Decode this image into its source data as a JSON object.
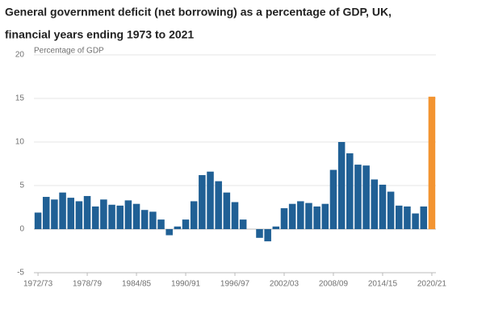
{
  "chart_data": {
    "type": "bar",
    "title": [
      "General government deficit (net borrowing) as a percentage of GDP, UK,",
      "financial years ending 1973 to 2021"
    ],
    "y_label": "Percentage of GDP",
    "categories": [
      "1972/73",
      null,
      null,
      null,
      null,
      null,
      "1978/79",
      null,
      null,
      null,
      null,
      null,
      "1984/85",
      null,
      null,
      null,
      null,
      null,
      "1990/91",
      null,
      null,
      null,
      null,
      null,
      "1996/97",
      null,
      null,
      null,
      null,
      null,
      "2002/03",
      null,
      null,
      null,
      null,
      null,
      "2008/09",
      null,
      null,
      null,
      null,
      null,
      "2014/15",
      null,
      null,
      null,
      null,
      null,
      "2020/21"
    ],
    "values": [
      1.9,
      3.7,
      3.4,
      4.2,
      3.6,
      3.2,
      3.8,
      2.6,
      3.4,
      2.8,
      2.7,
      3.3,
      2.9,
      2.2,
      2.0,
      1.1,
      -0.7,
      0.3,
      1.1,
      3.2,
      6.2,
      6.6,
      5.5,
      4.2,
      3.1,
      1.1,
      0,
      -1.0,
      -1.4,
      0.3,
      2.4,
      2.9,
      3.2,
      3.0,
      2.6,
      2.9,
      6.8,
      10.0,
      8.7,
      7.4,
      7.3,
      5.7,
      5.1,
      4.3,
      2.7,
      2.6,
      1.8,
      2.6,
      15.2
    ],
    "colors": [
      "#206095",
      "#206095",
      "#206095",
      "#206095",
      "#206095",
      "#206095",
      "#206095",
      "#206095",
      "#206095",
      "#206095",
      "#206095",
      "#206095",
      "#206095",
      "#206095",
      "#206095",
      "#206095",
      "#206095",
      "#206095",
      "#206095",
      "#206095",
      "#206095",
      "#206095",
      "#206095",
      "#206095",
      "#206095",
      "#206095",
      "#206095",
      "#206095",
      "#206095",
      "#206095",
      "#206095",
      "#206095",
      "#206095",
      "#206095",
      "#206095",
      "#206095",
      "#206095",
      "#206095",
      "#206095",
      "#206095",
      "#206095",
      "#206095",
      "#206095",
      "#206095",
      "#206095",
      "#206095",
      "#206095",
      "#206095",
      "#f39431"
    ],
    "ylim": [
      -5,
      20
    ],
    "yticks": [
      -5,
      0,
      5,
      10,
      15,
      20
    ],
    "grid": true
  }
}
